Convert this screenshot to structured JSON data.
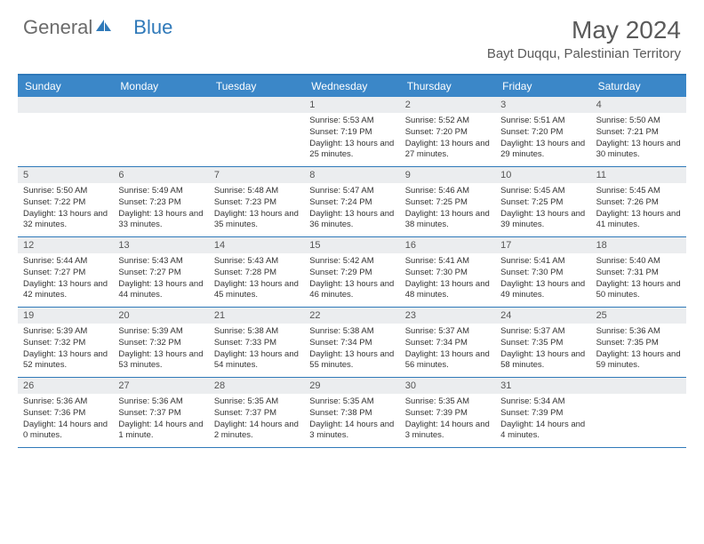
{
  "logo": {
    "part1": "General",
    "part2": "Blue"
  },
  "title": "May 2024",
  "location": "Bayt Duqqu, Palestinian Territory",
  "colors": {
    "header_bar": "#3b87c8",
    "border": "#2f79b9",
    "daynum_bg": "#ebedef",
    "text": "#333333",
    "title_text": "#5a5a5a"
  },
  "weekdays": [
    "Sunday",
    "Monday",
    "Tuesday",
    "Wednesday",
    "Thursday",
    "Friday",
    "Saturday"
  ],
  "weeks": [
    [
      null,
      null,
      null,
      {
        "n": "1",
        "sr": "5:53 AM",
        "ss": "7:19 PM",
        "dl": "13 hours and 25 minutes."
      },
      {
        "n": "2",
        "sr": "5:52 AM",
        "ss": "7:20 PM",
        "dl": "13 hours and 27 minutes."
      },
      {
        "n": "3",
        "sr": "5:51 AM",
        "ss": "7:20 PM",
        "dl": "13 hours and 29 minutes."
      },
      {
        "n": "4",
        "sr": "5:50 AM",
        "ss": "7:21 PM",
        "dl": "13 hours and 30 minutes."
      }
    ],
    [
      {
        "n": "5",
        "sr": "5:50 AM",
        "ss": "7:22 PM",
        "dl": "13 hours and 32 minutes."
      },
      {
        "n": "6",
        "sr": "5:49 AM",
        "ss": "7:23 PM",
        "dl": "13 hours and 33 minutes."
      },
      {
        "n": "7",
        "sr": "5:48 AM",
        "ss": "7:23 PM",
        "dl": "13 hours and 35 minutes."
      },
      {
        "n": "8",
        "sr": "5:47 AM",
        "ss": "7:24 PM",
        "dl": "13 hours and 36 minutes."
      },
      {
        "n": "9",
        "sr": "5:46 AM",
        "ss": "7:25 PM",
        "dl": "13 hours and 38 minutes."
      },
      {
        "n": "10",
        "sr": "5:45 AM",
        "ss": "7:25 PM",
        "dl": "13 hours and 39 minutes."
      },
      {
        "n": "11",
        "sr": "5:45 AM",
        "ss": "7:26 PM",
        "dl": "13 hours and 41 minutes."
      }
    ],
    [
      {
        "n": "12",
        "sr": "5:44 AM",
        "ss": "7:27 PM",
        "dl": "13 hours and 42 minutes."
      },
      {
        "n": "13",
        "sr": "5:43 AM",
        "ss": "7:27 PM",
        "dl": "13 hours and 44 minutes."
      },
      {
        "n": "14",
        "sr": "5:43 AM",
        "ss": "7:28 PM",
        "dl": "13 hours and 45 minutes."
      },
      {
        "n": "15",
        "sr": "5:42 AM",
        "ss": "7:29 PM",
        "dl": "13 hours and 46 minutes."
      },
      {
        "n": "16",
        "sr": "5:41 AM",
        "ss": "7:30 PM",
        "dl": "13 hours and 48 minutes."
      },
      {
        "n": "17",
        "sr": "5:41 AM",
        "ss": "7:30 PM",
        "dl": "13 hours and 49 minutes."
      },
      {
        "n": "18",
        "sr": "5:40 AM",
        "ss": "7:31 PM",
        "dl": "13 hours and 50 minutes."
      }
    ],
    [
      {
        "n": "19",
        "sr": "5:39 AM",
        "ss": "7:32 PM",
        "dl": "13 hours and 52 minutes."
      },
      {
        "n": "20",
        "sr": "5:39 AM",
        "ss": "7:32 PM",
        "dl": "13 hours and 53 minutes."
      },
      {
        "n": "21",
        "sr": "5:38 AM",
        "ss": "7:33 PM",
        "dl": "13 hours and 54 minutes."
      },
      {
        "n": "22",
        "sr": "5:38 AM",
        "ss": "7:34 PM",
        "dl": "13 hours and 55 minutes."
      },
      {
        "n": "23",
        "sr": "5:37 AM",
        "ss": "7:34 PM",
        "dl": "13 hours and 56 minutes."
      },
      {
        "n": "24",
        "sr": "5:37 AM",
        "ss": "7:35 PM",
        "dl": "13 hours and 58 minutes."
      },
      {
        "n": "25",
        "sr": "5:36 AM",
        "ss": "7:35 PM",
        "dl": "13 hours and 59 minutes."
      }
    ],
    [
      {
        "n": "26",
        "sr": "5:36 AM",
        "ss": "7:36 PM",
        "dl": "14 hours and 0 minutes."
      },
      {
        "n": "27",
        "sr": "5:36 AM",
        "ss": "7:37 PM",
        "dl": "14 hours and 1 minute."
      },
      {
        "n": "28",
        "sr": "5:35 AM",
        "ss": "7:37 PM",
        "dl": "14 hours and 2 minutes."
      },
      {
        "n": "29",
        "sr": "5:35 AM",
        "ss": "7:38 PM",
        "dl": "14 hours and 3 minutes."
      },
      {
        "n": "30",
        "sr": "5:35 AM",
        "ss": "7:39 PM",
        "dl": "14 hours and 3 minutes."
      },
      {
        "n": "31",
        "sr": "5:34 AM",
        "ss": "7:39 PM",
        "dl": "14 hours and 4 minutes."
      },
      null
    ]
  ],
  "labels": {
    "sunrise": "Sunrise:",
    "sunset": "Sunset:",
    "daylight": "Daylight:"
  }
}
